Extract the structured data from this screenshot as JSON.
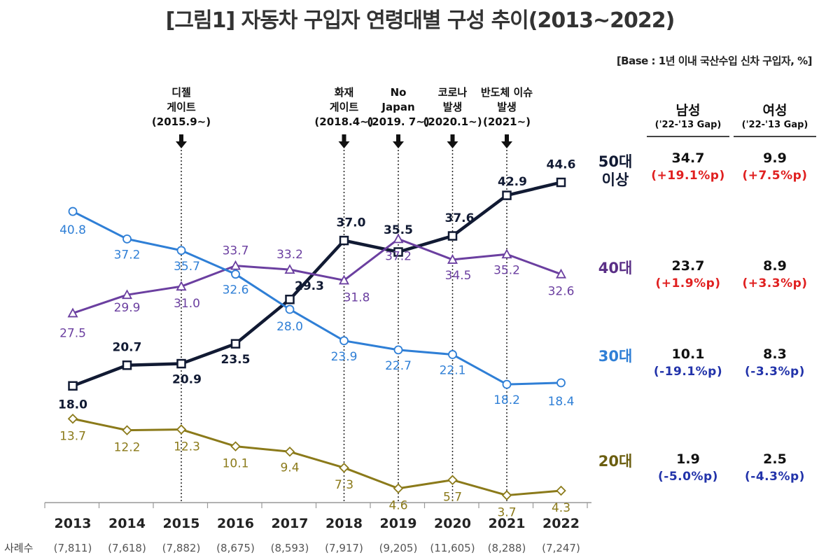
{
  "title": "[그림1] 자동차 구입자 연령대별 구성 추이(2013~2022)",
  "base_note": "[Base : 1년 이내 국산수입 신차 구입자, %]",
  "sample_label": "사례수",
  "samples": [
    "(7,811)",
    "(7,618)",
    "(7,882)",
    "(8,675)",
    "(8,593)",
    "(7,917)",
    "(9,205)",
    "(11,605)",
    "(8,288)",
    "(7,247)"
  ],
  "events": [
    {
      "year": "2015",
      "label": "디젤\n게이트\n(2015.9~)"
    },
    {
      "year": "2018",
      "label": "화재\n게이트\n(2018.4~)"
    },
    {
      "year": "2019",
      "label": "No\nJapan\n(2019. 7~)"
    },
    {
      "year": "2020",
      "label": "코로나\n발생\n(2020.1~)"
    },
    {
      "year": "2021",
      "label": "반도체 이슈\n발생\n(2021~)"
    }
  ],
  "chart_data": {
    "type": "line",
    "categories": [
      "2013",
      "2014",
      "2015",
      "2016",
      "2017",
      "2018",
      "2019",
      "2020",
      "2021",
      "2022"
    ],
    "series": [
      {
        "name": "50대 이상",
        "color": "#111a33",
        "marker": "square",
        "values": [
          18.0,
          20.7,
          20.9,
          23.5,
          29.3,
          37.0,
          35.5,
          37.6,
          42.9,
          44.6
        ],
        "labels": [
          "18.0",
          "20.7",
          "20.9",
          "23.5",
          "29.3",
          "37.0",
          "35.5",
          "37.6",
          "42.9",
          "44.6"
        ]
      },
      {
        "name": "40대",
        "color": "#6b3fa0",
        "marker": "triangle",
        "values": [
          27.5,
          29.9,
          31.0,
          33.7,
          33.2,
          31.8,
          37.2,
          34.5,
          35.2,
          32.6
        ],
        "labels": [
          "27.5",
          "29.9",
          "31.0",
          "33.7",
          "33.2",
          "31.8",
          "37.2",
          "34.5",
          "35.2",
          "32.6"
        ]
      },
      {
        "name": "30대",
        "color": "#2f7fd6",
        "marker": "circle",
        "values": [
          40.8,
          37.2,
          35.7,
          32.6,
          28.0,
          23.9,
          22.7,
          22.1,
          18.2,
          18.4
        ],
        "labels": [
          "40.8",
          "37.2",
          "35.7",
          "32.6",
          "28.0",
          "23.9",
          "22.7",
          "22.1",
          "18.2",
          "18.4"
        ]
      },
      {
        "name": "20대",
        "color": "#8b7a1a",
        "marker": "diamond",
        "values": [
          13.7,
          12.2,
          12.3,
          10.1,
          9.4,
          7.3,
          4.6,
          5.7,
          3.7,
          4.3
        ],
        "labels": [
          "13.7",
          "12.2",
          "12.3",
          "10.1",
          "9.4",
          "7.3",
          "4.6",
          "5.7",
          "3.7",
          "4.3"
        ]
      }
    ],
    "ylim": [
      0,
      47
    ],
    "grid": false
  },
  "table": {
    "male_header": "남성",
    "female_header": "여성",
    "gap_header": "('22-'13 Gap)",
    "rows": [
      {
        "age": "50대\n이상",
        "male": "34.7",
        "male_gap": "(+19.1%p)",
        "female": "9.9",
        "female_gap": "(+7.5%p)",
        "color": "#111a33",
        "gap_color": "#e02020"
      },
      {
        "age": "40대",
        "male": "23.7",
        "male_gap": "(+1.9%p)",
        "female": "8.9",
        "female_gap": "(+3.3%p)",
        "color": "#5a2f86",
        "gap_color": "#e02020"
      },
      {
        "age": "30대",
        "male": "10.1",
        "male_gap": "(-19.1%p)",
        "female": "8.3",
        "female_gap": "(-3.3%p)",
        "color": "#2f7fd6",
        "gap_color": "#2233aa"
      },
      {
        "age": "20대",
        "male": "1.9",
        "male_gap": "(-5.0%p)",
        "female": "2.5",
        "female_gap": "(-4.3%p)",
        "color": "#6b5e10",
        "gap_color": "#2233aa"
      }
    ]
  }
}
